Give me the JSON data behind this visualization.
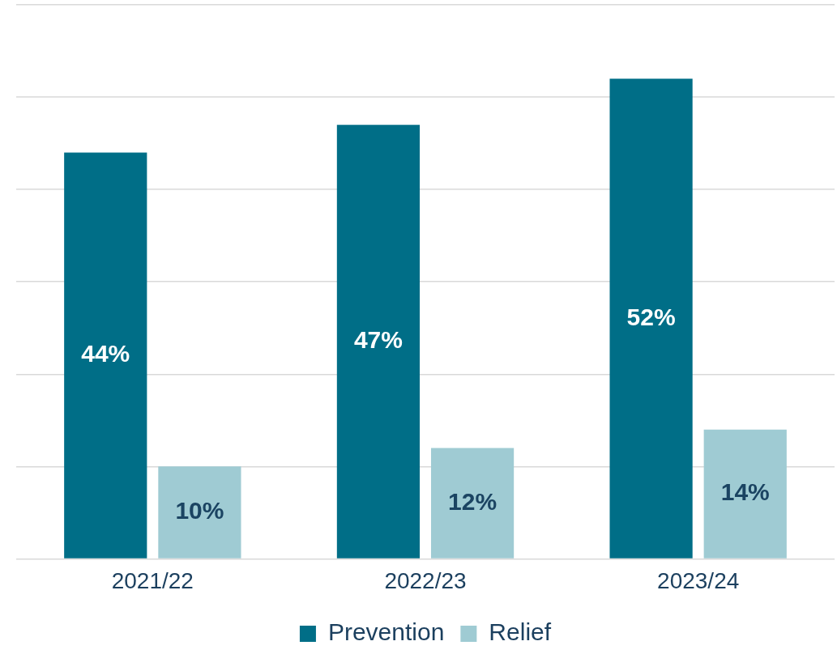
{
  "chart_data": {
    "type": "bar",
    "categories": [
      "2021/22",
      "2022/23",
      "2023/24"
    ],
    "series": [
      {
        "name": "Prevention",
        "color": "#006e87",
        "values": [
          44,
          47,
          52
        ],
        "value_labels": [
          "44%",
          "47%",
          "52%"
        ]
      },
      {
        "name": "Relief",
        "color": "#9fcbd3",
        "values": [
          10,
          12,
          14
        ],
        "value_labels": [
          "10%",
          "12%",
          "14%"
        ]
      }
    ],
    "ylim": [
      0,
      60
    ],
    "yticks": [
      {
        "value": 0,
        "label": null
      },
      {
        "value": 10,
        "label": null
      },
      {
        "value": 20,
        "label": null
      },
      {
        "value": 30,
        "label": null
      },
      {
        "value": 40,
        "label": null
      },
      {
        "value": 50,
        "label": null
      },
      {
        "value": 60,
        "label": null
      }
    ],
    "grid": "y",
    "tick_labels": "x",
    "legend": "bottom"
  }
}
